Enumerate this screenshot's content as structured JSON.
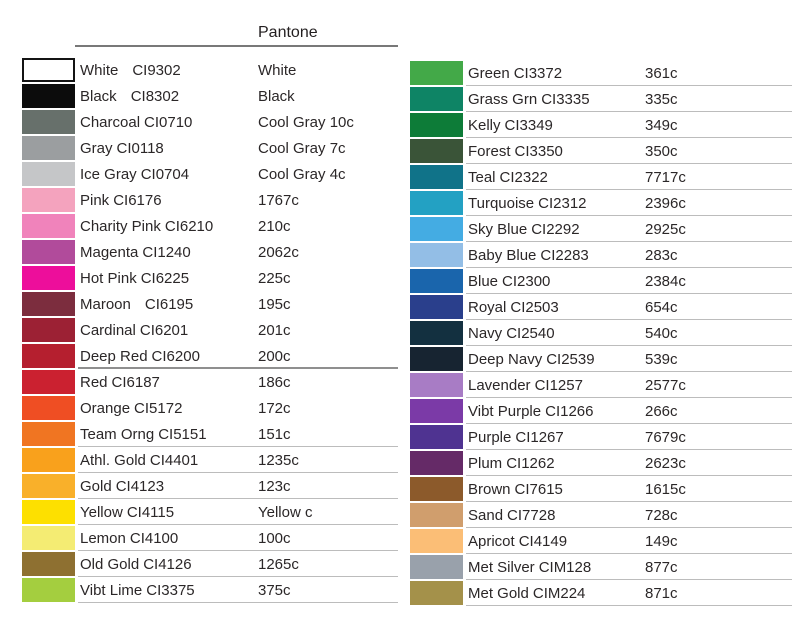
{
  "chart_data": {
    "type": "table",
    "title": "Pantone",
    "columns": [
      "swatch",
      "name",
      "ink_code",
      "pantone"
    ],
    "left": {
      "rows": [
        {
          "name": "White",
          "code": "CI9302",
          "pantone": "White",
          "color": "#ffffff",
          "border": true,
          "wide_gap": true,
          "underline": "none"
        },
        {
          "name": "Black",
          "code": "CI8302",
          "pantone": "Black",
          "color": "#0c0c0c",
          "border": false,
          "wide_gap": true,
          "underline": "none"
        },
        {
          "name": "Charcoal",
          "code": "CI0710",
          "pantone": "Cool Gray 10c",
          "color": "#67706b",
          "border": false,
          "wide_gap": false,
          "underline": "none"
        },
        {
          "name": "Gray",
          "code": "CI0118",
          "pantone": "Cool Gray 7c",
          "color": "#9b9ea0",
          "border": false,
          "wide_gap": false,
          "underline": "none"
        },
        {
          "name": "Ice Gray",
          "code": "CI0704",
          "pantone": "Cool Gray 4c",
          "color": "#c5c6c8",
          "border": false,
          "wide_gap": false,
          "underline": "none"
        },
        {
          "name": "Pink",
          "code": "CI6176",
          "pantone": "1767c",
          "color": "#f4a3be",
          "border": false,
          "wide_gap": false,
          "underline": "none"
        },
        {
          "name": "Charity Pink",
          "code": "CI6210",
          "pantone": "210c",
          "color": "#f083bb",
          "border": false,
          "wide_gap": false,
          "underline": "none"
        },
        {
          "name": "Magenta",
          "code": "CI1240",
          "pantone": "2062c",
          "color": "#b14b9b",
          "border": false,
          "wide_gap": false,
          "underline": "none"
        },
        {
          "name": "Hot Pink",
          "code": "CI6225",
          "pantone": "225c",
          "color": "#ed0e9b",
          "border": false,
          "wide_gap": false,
          "underline": "none"
        },
        {
          "name": "Maroon",
          "code": "CI6195",
          "pantone": "195c",
          "color": "#7c2d3e",
          "border": false,
          "wide_gap": true,
          "underline": "none"
        },
        {
          "name": "Cardinal",
          "code": "CI6201",
          "pantone": "201c",
          "color": "#9c2134",
          "border": false,
          "wide_gap": false,
          "underline": "none"
        },
        {
          "name": "Deep Red",
          "code": "CI6200",
          "pantone": "200c",
          "color": "#b51f2f",
          "border": false,
          "wide_gap": false,
          "underline": "strong"
        },
        {
          "name": "Red",
          "code": "CI6187",
          "pantone": "186c",
          "color": "#cb2130",
          "border": false,
          "wide_gap": false,
          "underline": "none"
        },
        {
          "name": "Orange",
          "code": "CI5172",
          "pantone": "172c",
          "color": "#ef4e23",
          "border": false,
          "wide_gap": false,
          "underline": "none"
        },
        {
          "name": "Team Orng",
          "code": "CI5151",
          "pantone": "151c",
          "color": "#f07522",
          "border": false,
          "wide_gap": false,
          "underline": "faint"
        },
        {
          "name": "Athl. Gold",
          "code": "CI4401",
          "pantone": "1235c",
          "color": "#f9a11c",
          "border": false,
          "wide_gap": false,
          "underline": "faint"
        },
        {
          "name": "Gold",
          "code": "CI4123",
          "pantone": "123c",
          "color": "#f9b02a",
          "border": false,
          "wide_gap": false,
          "underline": "faint"
        },
        {
          "name": "Yellow",
          "code": "CI4115",
          "pantone": "Yellow c",
          "color": "#fde000",
          "border": false,
          "wide_gap": false,
          "underline": "faint"
        },
        {
          "name": "Lemon",
          "code": "CI4100",
          "pantone": "100c",
          "color": "#f4ec73",
          "border": false,
          "wide_gap": false,
          "underline": "faint"
        },
        {
          "name": "Old Gold",
          "code": "CI4126",
          "pantone": "1265c",
          "color": "#8e7031",
          "border": false,
          "wide_gap": false,
          "underline": "faint"
        },
        {
          "name": "Vibt Lime",
          "code": "CI3375",
          "pantone": "375c",
          "color": "#a4ce3f",
          "border": false,
          "wide_gap": false,
          "underline": "faint"
        }
      ]
    },
    "right": {
      "rows": [
        {
          "name": "Green",
          "code": "CI3372",
          "pantone": "361c",
          "color": "#43a948",
          "border": false,
          "wide_gap": false,
          "underline": "faint"
        },
        {
          "name": "Grass Grn",
          "code": "CI3335",
          "pantone": "335c",
          "color": "#0e8465",
          "border": false,
          "wide_gap": false,
          "underline": "faint"
        },
        {
          "name": "Kelly",
          "code": "CI3349",
          "pantone": "349c",
          "color": "#0d7c38",
          "border": false,
          "wide_gap": false,
          "underline": "faint"
        },
        {
          "name": "Forest",
          "code": "CI3350",
          "pantone": "350c",
          "color": "#3a5438",
          "border": false,
          "wide_gap": false,
          "underline": "faint"
        },
        {
          "name": "Teal",
          "code": "CI2322",
          "pantone": "7717c",
          "color": "#107389",
          "border": false,
          "wide_gap": false,
          "underline": "faint"
        },
        {
          "name": "Turquoise",
          "code": "CI2312",
          "pantone": "2396c",
          "color": "#23a1c3",
          "border": false,
          "wide_gap": false,
          "underline": "faint"
        },
        {
          "name": "Sky Blue",
          "code": "CI2292",
          "pantone": "2925c",
          "color": "#44ace3",
          "border": false,
          "wide_gap": false,
          "underline": "faint"
        },
        {
          "name": "Baby Blue",
          "code": "CI2283",
          "pantone": "283c",
          "color": "#93bee6",
          "border": false,
          "wide_gap": false,
          "underline": "faint"
        },
        {
          "name": "Blue",
          "code": "CI2300",
          "pantone": "2384c",
          "color": "#1a65ac",
          "border": false,
          "wide_gap": false,
          "underline": "faint"
        },
        {
          "name": "Royal",
          "code": "CI2503",
          "pantone": "654c",
          "color": "#2a3f8c",
          "border": false,
          "wide_gap": false,
          "underline": "faint"
        },
        {
          "name": "Navy",
          "code": "CI2540",
          "pantone": "540c",
          "color": "#133040",
          "border": false,
          "wide_gap": false,
          "underline": "faint"
        },
        {
          "name": "Deep Navy",
          "code": "CI2539",
          "pantone": "539c",
          "color": "#172431",
          "border": false,
          "wide_gap": false,
          "underline": "faint"
        },
        {
          "name": "Lavender",
          "code": "CI1257",
          "pantone": "2577c",
          "color": "#a87cc5",
          "border": false,
          "wide_gap": false,
          "underline": "faint"
        },
        {
          "name": "Vibt Purple",
          "code": "CI1266",
          "pantone": "266c",
          "color": "#7b3aa7",
          "border": false,
          "wide_gap": false,
          "underline": "faint"
        },
        {
          "name": "Purple",
          "code": "CI1267",
          "pantone": "7679c",
          "color": "#4f3391",
          "border": false,
          "wide_gap": false,
          "underline": "faint"
        },
        {
          "name": "Plum",
          "code": "CI1262",
          "pantone": "2623c",
          "color": "#652a67",
          "border": false,
          "wide_gap": false,
          "underline": "faint"
        },
        {
          "name": "Brown",
          "code": "CI7615",
          "pantone": "1615c",
          "color": "#8c5a2b",
          "border": false,
          "wide_gap": false,
          "underline": "faint"
        },
        {
          "name": "Sand",
          "code": "CI7728",
          "pantone": "728c",
          "color": "#d09e6d",
          "border": false,
          "wide_gap": false,
          "underline": "faint"
        },
        {
          "name": "Apricot",
          "code": "CI4149",
          "pantone": "149c",
          "color": "#fbbe76",
          "border": false,
          "wide_gap": false,
          "underline": "faint"
        },
        {
          "name": "Met Silver",
          "code": "CIM128",
          "pantone": "877c",
          "color": "#99a1ab",
          "border": false,
          "wide_gap": false,
          "underline": "faint"
        },
        {
          "name": "Met Gold",
          "code": "CIM224",
          "pantone": "871c",
          "color": "#a4914a",
          "border": false,
          "wide_gap": false,
          "underline": "faint"
        }
      ]
    }
  }
}
